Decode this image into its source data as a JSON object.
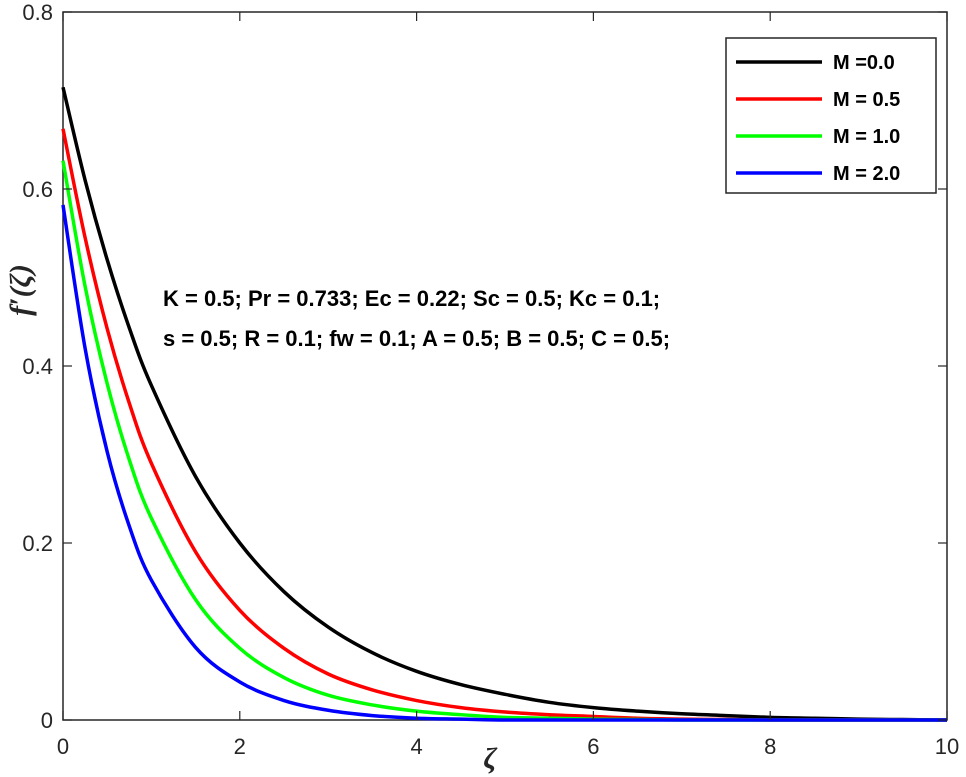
{
  "chart_data": {
    "type": "line",
    "title": "",
    "xlabel": "ζ",
    "ylabel": "f′(ζ)",
    "xlim": [
      0,
      10
    ],
    "ylim": [
      0,
      0.8
    ],
    "xticks": [
      "0",
      "2",
      "4",
      "6",
      "8",
      "10"
    ],
    "yticks": [
      "0",
      "0.2",
      "0.4",
      "0.6",
      "0.8"
    ],
    "legend_position": "top-right",
    "grid": false,
    "annotations": [
      "K = 0.5; Pr = 0.733; Ec = 0.22; Sc = 0.5; Kc = 0.1;",
      "s = 0.5; R = 0.1; fw = 0.1; A = 0.5; B = 0.5; C = 0.5;"
    ],
    "x": [
      0,
      0.25,
      0.5,
      0.75,
      1,
      1.5,
      2,
      2.5,
      3,
      3.5,
      4,
      4.5,
      5,
      5.5,
      6,
      6.5,
      7,
      7.5,
      8,
      8.5,
      9,
      9.5,
      10
    ],
    "series": [
      {
        "name": "M =0.0",
        "color": "#000000",
        "values": [
          0.715,
          0.61,
          0.52,
          0.443,
          0.378,
          0.275,
          0.2,
          0.145,
          0.105,
          0.076,
          0.055,
          0.04,
          0.029,
          0.02,
          0.014,
          0.01,
          0.007,
          0.005,
          0.003,
          0.002,
          0.001,
          0.0005,
          0.0
        ]
      },
      {
        "name": "M = 0.5",
        "color": "#ff0000",
        "values": [
          0.668,
          0.545,
          0.442,
          0.358,
          0.29,
          0.19,
          0.124,
          0.081,
          0.052,
          0.034,
          0.022,
          0.014,
          0.009,
          0.006,
          0.004,
          0.002,
          0.001,
          0.0005,
          0.0,
          0.0,
          0.0,
          0.0,
          0.0
        ]
      },
      {
        "name": "M = 1.0",
        "color": "#00ff00",
        "values": [
          0.632,
          0.49,
          0.38,
          0.294,
          0.228,
          0.136,
          0.081,
          0.048,
          0.028,
          0.017,
          0.01,
          0.006,
          0.003,
          0.002,
          0.001,
          0.0005,
          0.0,
          0.0,
          0.0,
          0.0,
          0.0,
          0.0,
          0.0
        ]
      },
      {
        "name": "M = 2.0",
        "color": "#0000ff",
        "values": [
          0.582,
          0.42,
          0.303,
          0.219,
          0.158,
          0.082,
          0.043,
          0.022,
          0.011,
          0.005,
          0.002,
          0.001,
          0.0,
          0.0,
          0.0,
          0.0,
          0.0,
          0.0,
          0.0,
          0.0,
          0.0,
          0.0,
          0.0
        ]
      }
    ]
  }
}
